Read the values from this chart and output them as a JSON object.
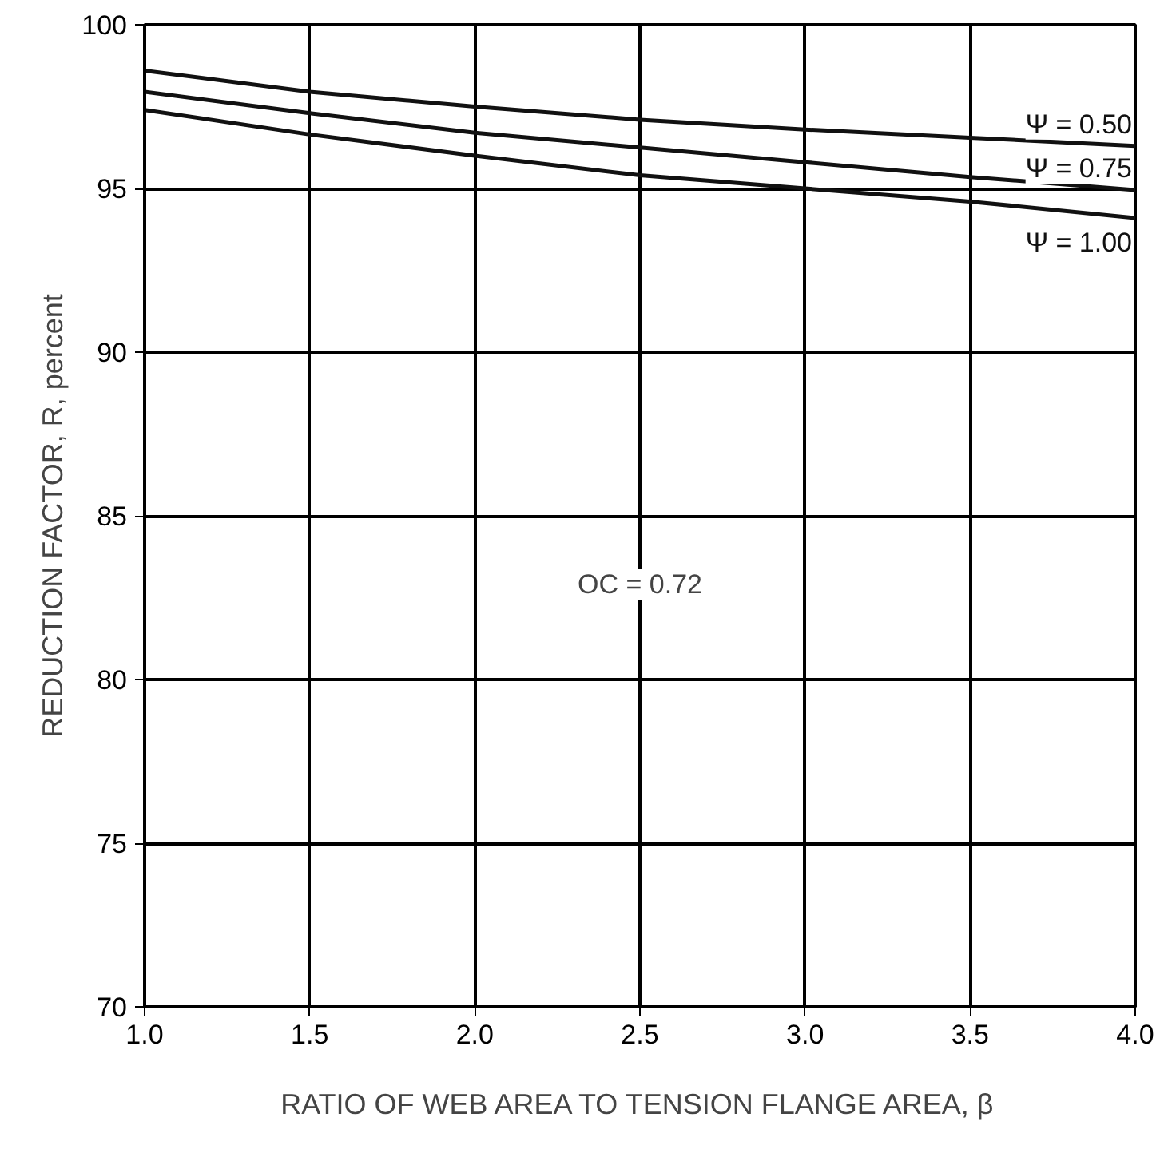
{
  "chart_data": {
    "type": "line",
    "xlabel": "RATIO OF WEB AREA TO TENSION FLANGE AREA, β",
    "ylabel": "REDUCTION FACTOR, R, percent",
    "x": [
      1.0,
      1.5,
      2.0,
      2.5,
      3.0,
      3.5,
      4.0
    ],
    "series": [
      {
        "name": "Ψ = 0.50",
        "color": "#111111",
        "values": [
          98.6,
          97.95,
          97.5,
          97.1,
          96.8,
          96.55,
          96.3
        ]
      },
      {
        "name": "Ψ = 0.75",
        "color": "#111111",
        "values": [
          97.95,
          97.3,
          96.7,
          96.25,
          95.8,
          95.35,
          94.95
        ]
      },
      {
        "name": "Ψ = 1.00",
        "color": "#111111",
        "values": [
          97.4,
          96.65,
          96.0,
          95.4,
          95.0,
          94.6,
          94.1
        ]
      }
    ],
    "xlim": [
      1.0,
      4.0
    ],
    "ylim": [
      70,
      100
    ],
    "xticks": [
      {
        "value": 1.0,
        "label": "1.0"
      },
      {
        "value": 1.5,
        "label": "1.5"
      },
      {
        "value": 2.0,
        "label": "2.0"
      },
      {
        "value": 2.5,
        "label": "2.5"
      },
      {
        "value": 3.0,
        "label": "3.0"
      },
      {
        "value": 3.5,
        "label": "3.5"
      },
      {
        "value": 4.0,
        "label": "4.0"
      }
    ],
    "yticks": [
      70,
      75,
      80,
      85,
      90,
      95,
      100
    ],
    "annotations": [
      "OC = 0.72"
    ],
    "grid": true,
    "legend": false,
    "line_style": "solid"
  }
}
